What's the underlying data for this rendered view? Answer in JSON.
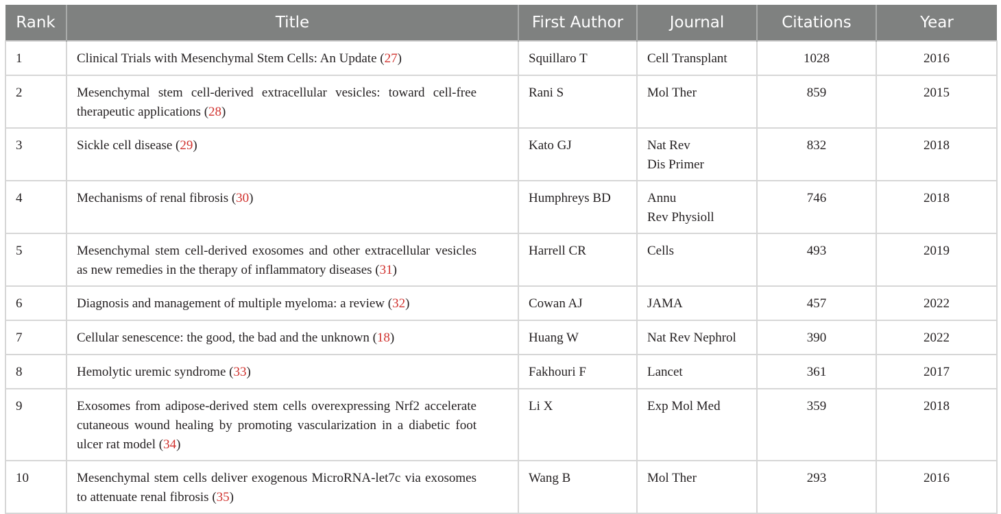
{
  "headers": [
    "Rank",
    "Title",
    "First Author",
    "Journal",
    "Citations",
    "Year"
  ],
  "rows": [
    {
      "rank": "1",
      "title": "Clinical Trials with Mesenchymal Stem Cells: An Update",
      "ref": "27",
      "author": "Squillaro T",
      "journal": [
        "Cell Transplant"
      ],
      "citations": "1028",
      "year": "2016"
    },
    {
      "rank": "2",
      "title": "Mesenchymal stem cell-derived extracellular vesicles: toward cell-free therapeutic applications",
      "ref": "28",
      "author": "Rani S",
      "journal": [
        "Mol Ther"
      ],
      "citations": "859",
      "year": "2015"
    },
    {
      "rank": "3",
      "title": "Sickle cell disease",
      "ref": "29",
      "author": "Kato GJ",
      "journal": [
        "Nat Rev",
        "Dis Primer"
      ],
      "citations": "832",
      "year": "2018"
    },
    {
      "rank": "4",
      "title": "Mechanisms of renal fibrosis",
      "ref": "30",
      "author": "Humphreys BD",
      "journal": [
        "Annu",
        "Rev Physioll"
      ],
      "citations": "746",
      "year": "2018"
    },
    {
      "rank": "5",
      "title": "Mesenchymal stem cell-derived exosomes and other extracellular vesicles as new remedies in the therapy of inflammatory diseases",
      "ref": "31",
      "author": "Harrell CR",
      "journal": [
        "Cells"
      ],
      "citations": "493",
      "year": "2019"
    },
    {
      "rank": "6",
      "title": "Diagnosis and management of multiple myeloma: a review",
      "ref": "32",
      "author": "Cowan AJ",
      "journal": [
        "JAMA"
      ],
      "citations": "457",
      "year": "2022"
    },
    {
      "rank": "7",
      "title": "Cellular senescence: the good, the bad and the unknown",
      "ref": "18",
      "author": "Huang W",
      "journal": [
        "Nat Rev Nephrol"
      ],
      "citations": "390",
      "year": "2022"
    },
    {
      "rank": "8",
      "title": "Hemolytic uremic syndrome",
      "ref": "33",
      "author": "Fakhouri F",
      "journal": [
        "Lancet"
      ],
      "citations": "361",
      "year": "2017"
    },
    {
      "rank": "9",
      "title": "Exosomes from adipose-derived stem cells overexpressing Nrf2 accelerate cutaneous wound healing by promoting vascularization in a diabetic foot ulcer rat model",
      "ref": "34",
      "author": "Li X",
      "journal": [
        "Exp Mol Med"
      ],
      "citations": "359",
      "year": "2018"
    },
    {
      "rank": "10",
      "title": "Mesenchymal stem cells deliver exogenous MicroRNA-let7c via exosomes to attenuate renal fibrosis",
      "ref": "35",
      "author": "Wang B",
      "journal": [
        "Mol Ther"
      ],
      "citations": "293",
      "year": "2016"
    }
  ],
  "colors": {
    "header_bg": "#7f8180",
    "ref_link": "#d0312d"
  }
}
